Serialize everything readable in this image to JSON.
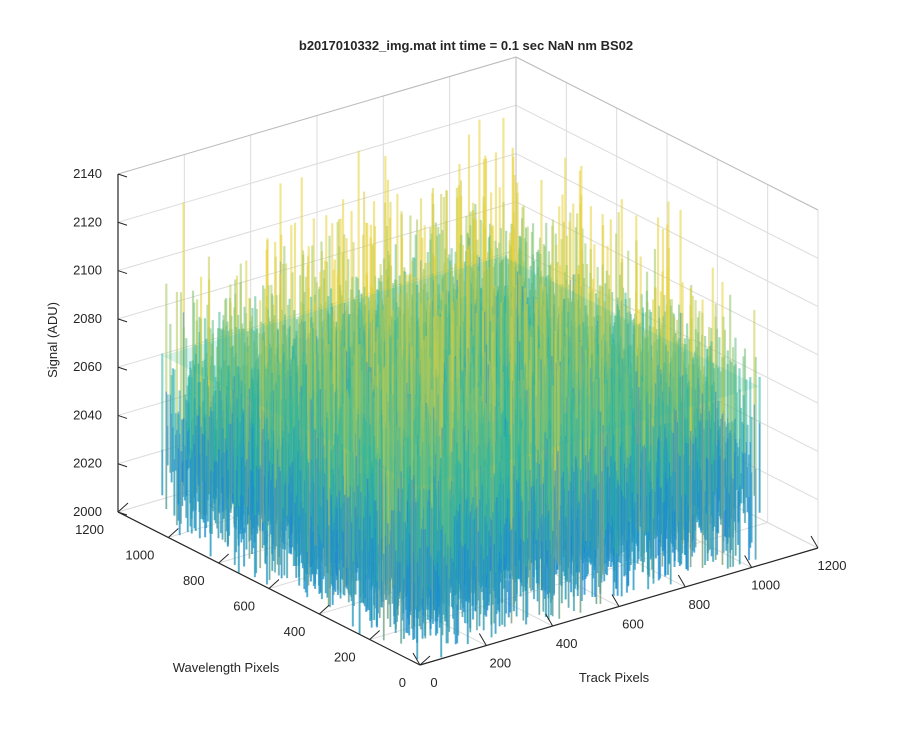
{
  "chart_data": {
    "type": "surface",
    "title": "b2017010332_img.mat int time = 0.1 sec  NaN nm BS02",
    "xlabel": "Track Pixels",
    "ylabel": "Wavelength Pixels",
    "zlabel": "Signal (ADU)",
    "xlim": [
      0,
      1200
    ],
    "ylim": [
      0,
      1200
    ],
    "zlim": [
      2000,
      2140
    ],
    "x_ticks": [
      "0",
      "200",
      "400",
      "600",
      "800",
      "1000",
      "1200"
    ],
    "y_ticks": [
      "0",
      "200",
      "400",
      "600",
      "800",
      "1000",
      "1200"
    ],
    "z_ticks": [
      "2000",
      "2020",
      "2040",
      "2060",
      "2080",
      "2100",
      "2120",
      "2140"
    ],
    "grid": true,
    "colormap": "parula",
    "data_extent": {
      "x": [
        0,
        1024
      ],
      "y": [
        0,
        1024
      ]
    },
    "typical_signal_range": [
      2010,
      2110
    ],
    "peak_signal": 2135,
    "colors": {
      "low": "#1a7de0",
      "mid": "#2cb5a0",
      "high": "#e8d23a"
    }
  }
}
